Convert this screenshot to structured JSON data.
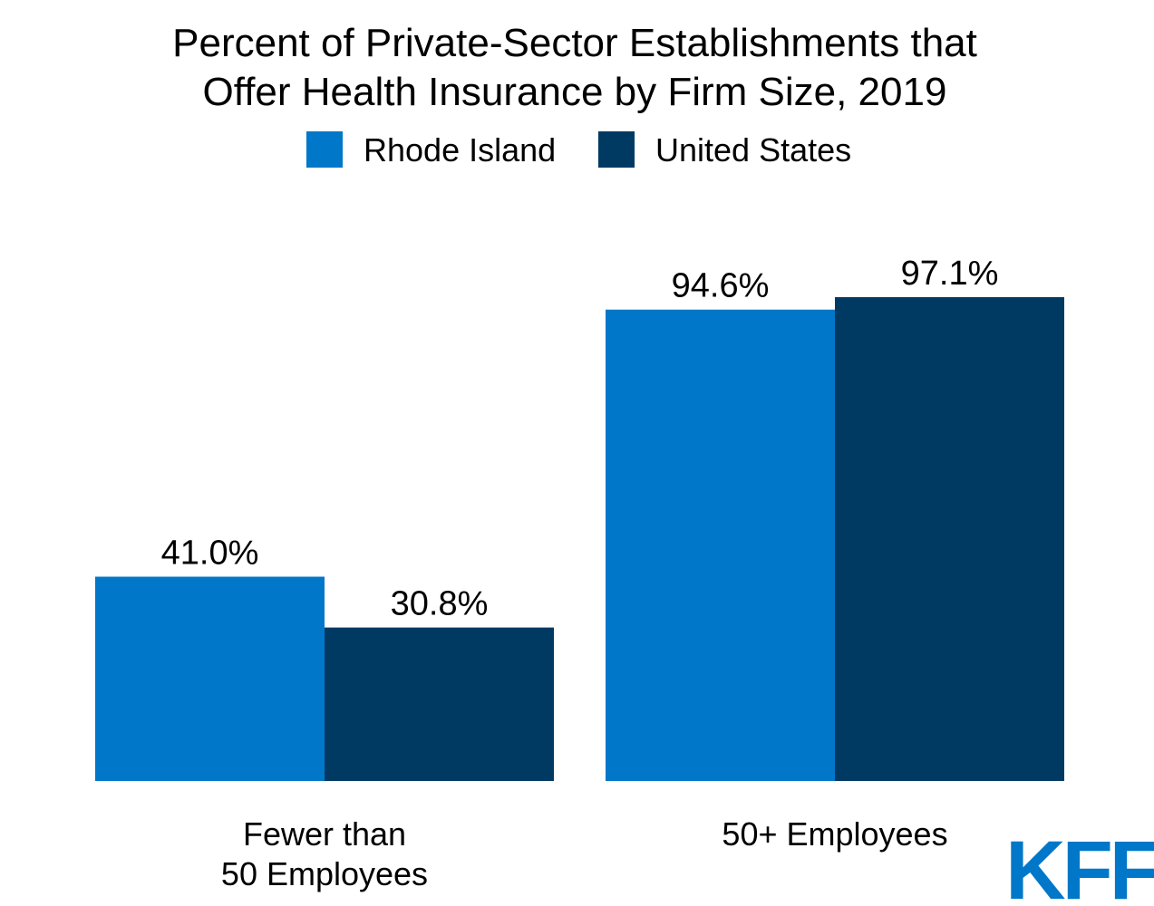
{
  "chart_data": {
    "type": "bar",
    "title": [
      "Percent of Private-Sector Establishments that",
      "Offer Health Insurance by Firm Size, 2019"
    ],
    "categories": [
      [
        "Fewer than",
        "50 Employees"
      ],
      [
        "50+ Employees"
      ]
    ],
    "series": [
      {
        "name": "Rhode Island",
        "values": [
          41.0,
          94.6
        ],
        "labels": [
          "41.0%",
          "94.6%"
        ],
        "color": "#0077c8"
      },
      {
        "name": "United States",
        "values": [
          30.8,
          97.1
        ],
        "labels": [
          "30.8%",
          "97.1%"
        ],
        "color": "#003a63"
      }
    ],
    "ylim": [
      0,
      100
    ],
    "grid": false,
    "legend": "top-center"
  },
  "logo": {
    "text": "KFF",
    "color": "#0077c8"
  }
}
